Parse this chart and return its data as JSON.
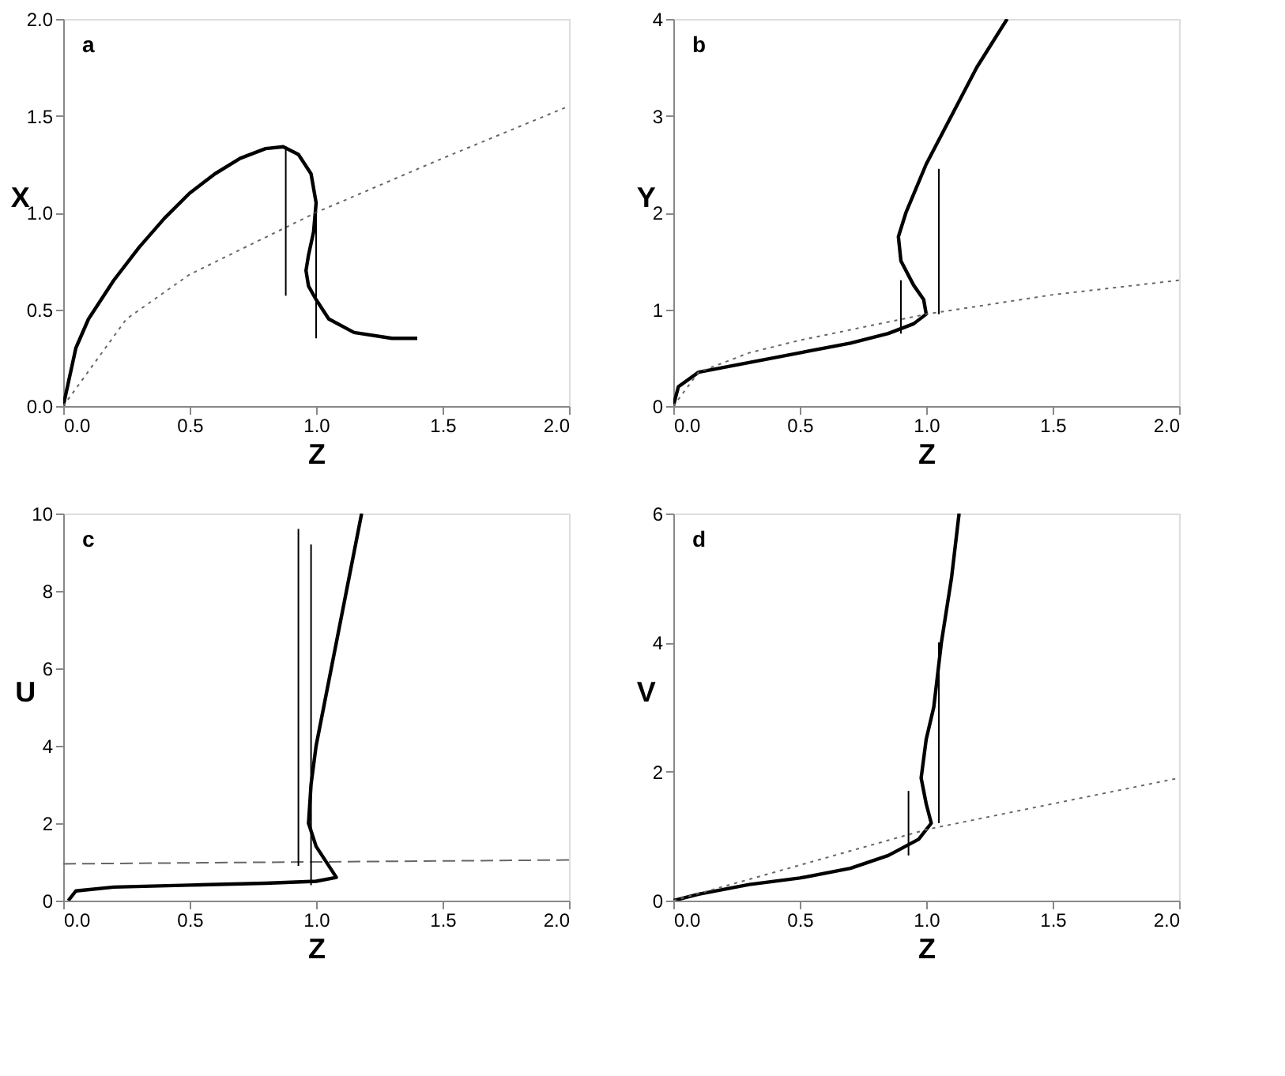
{
  "chart_data": [
    {
      "type": "line",
      "annotations": [
        "a"
      ],
      "xlabel": "Z",
      "ylabel": "X",
      "grid": false,
      "xlim": [
        0,
        2
      ],
      "xticks": [
        {
          "value": 0,
          "label": "0.0"
        },
        {
          "value": 0.5,
          "label": "0.5"
        },
        {
          "value": 1,
          "label": "1.0"
        },
        {
          "value": 1.5,
          "label": "1.5"
        },
        {
          "value": 2,
          "label": "2.0"
        }
      ],
      "ylim": [
        0,
        2
      ],
      "yticks": [
        {
          "value": 0,
          "label": "0.0"
        },
        {
          "value": 0.5,
          "label": "0.5"
        },
        {
          "value": 1,
          "label": "1.0"
        },
        {
          "value": 1.5,
          "label": "1.5"
        },
        {
          "value": 2,
          "label": "2.0"
        }
      ],
      "series": [
        {
          "color": "#000000",
          "line_style": "solid",
          "x": [
            0,
            0.05,
            0.1,
            0.2,
            0.3,
            0.4,
            0.5,
            0.6,
            0.7,
            0.8,
            0.87,
            0.93,
            0.98,
            1.0,
            0.99,
            0.97,
            0.96,
            0.97,
            1.0,
            1.05,
            1.15,
            1.3,
            1.4
          ],
          "values": [
            0,
            0.3,
            0.45,
            0.65,
            0.82,
            0.97,
            1.1,
            1.2,
            1.28,
            1.33,
            1.34,
            1.3,
            1.2,
            1.05,
            0.9,
            0.78,
            0.7,
            0.62,
            0.55,
            0.45,
            0.38,
            0.35,
            0.35
          ]
        },
        {
          "color": "#666666",
          "line_style": "dotted",
          "x": [
            0,
            0.25,
            0.5,
            1.0,
            1.5,
            2.0
          ],
          "values": [
            0,
            0.45,
            0.68,
            1.0,
            1.28,
            1.55
          ]
        },
        {
          "color": "#000000",
          "line_style": "solid",
          "x": [
            0.88,
            0.88
          ],
          "values": [
            0.57,
            1.33
          ]
        },
        {
          "color": "#000000",
          "line_style": "solid",
          "x": [
            1.0,
            1.0
          ],
          "values": [
            1.0,
            0.35
          ]
        }
      ]
    },
    {
      "type": "line",
      "annotations": [
        "b"
      ],
      "xlabel": "Z",
      "ylabel": "Y",
      "grid": false,
      "xlim": [
        0,
        2
      ],
      "xticks": [
        {
          "value": 0,
          "label": "0.0"
        },
        {
          "value": 0.5,
          "label": "0.5"
        },
        {
          "value": 1,
          "label": "1.0"
        },
        {
          "value": 1.5,
          "label": "1.5"
        },
        {
          "value": 2,
          "label": "2.0"
        }
      ],
      "ylim": [
        0,
        4
      ],
      "yticks": [
        0,
        1,
        2,
        3,
        4
      ],
      "series": [
        {
          "color": "#000000",
          "line_style": "solid",
          "x": [
            0,
            0.02,
            0.1,
            0.3,
            0.5,
            0.7,
            0.85,
            0.95,
            1.0,
            0.99,
            0.95,
            0.9,
            0.89,
            0.92,
            1.0,
            1.1,
            1.2,
            1.32
          ],
          "values": [
            0,
            0.2,
            0.35,
            0.45,
            0.55,
            0.65,
            0.75,
            0.85,
            0.95,
            1.1,
            1.25,
            1.5,
            1.75,
            2.0,
            2.5,
            3.0,
            3.5,
            4.0
          ]
        },
        {
          "color": "#666666",
          "line_style": "dotted",
          "x": [
            0,
            0.1,
            0.3,
            0.5,
            1.0,
            1.5,
            2.0
          ],
          "values": [
            0,
            0.35,
            0.55,
            0.68,
            0.95,
            1.15,
            1.3
          ]
        },
        {
          "color": "#000000",
          "line_style": "solid",
          "x": [
            0.9,
            0.9
          ],
          "values": [
            0.75,
            1.3
          ]
        },
        {
          "color": "#000000",
          "line_style": "solid",
          "x": [
            1.05,
            1.05
          ],
          "values": [
            0.95,
            2.45
          ]
        }
      ]
    },
    {
      "type": "line",
      "annotations": [
        "c"
      ],
      "xlabel": "Z",
      "ylabel": "U",
      "grid": false,
      "xlim": [
        0,
        2
      ],
      "xticks": [
        {
          "value": 0,
          "label": "0.0"
        },
        {
          "value": 0.5,
          "label": "0.5"
        },
        {
          "value": 1,
          "label": "1.0"
        },
        {
          "value": 1.5,
          "label": "1.5"
        },
        {
          "value": 2,
          "label": "2.0"
        }
      ],
      "ylim": [
        0,
        10
      ],
      "yticks": [
        0,
        2,
        4,
        6,
        8,
        10
      ],
      "series": [
        {
          "color": "#000000",
          "line_style": "solid",
          "x": [
            0.02,
            0.05,
            0.2,
            0.5,
            0.8,
            1.0,
            1.08,
            1.05,
            1.0,
            0.97,
            0.98,
            1.0,
            1.03,
            1.06,
            1.09,
            1.12,
            1.15,
            1.18
          ],
          "values": [
            0,
            0.25,
            0.35,
            0.4,
            0.45,
            0.5,
            0.6,
            0.9,
            1.4,
            2.0,
            3,
            4,
            5,
            6,
            7,
            8,
            9,
            10
          ]
        },
        {
          "color": "#666666",
          "line_style": "dashed",
          "x": [
            0,
            2.0
          ],
          "values": [
            0.95,
            1.05
          ]
        },
        {
          "color": "#000000",
          "line_style": "solid",
          "x": [
            0.93,
            0.93
          ],
          "values": [
            0.9,
            9.6
          ]
        },
        {
          "color": "#000000",
          "line_style": "solid",
          "x": [
            0.98,
            0.98
          ],
          "values": [
            9.2,
            0.4
          ]
        }
      ]
    },
    {
      "type": "line",
      "annotations": [
        "d"
      ],
      "xlabel": "Z",
      "ylabel": "V",
      "grid": false,
      "xlim": [
        0,
        2
      ],
      "xticks": [
        {
          "value": 0,
          "label": "0.0"
        },
        {
          "value": 0.5,
          "label": "0.5"
        },
        {
          "value": 1,
          "label": "1.0"
        },
        {
          "value": 1.5,
          "label": "1.5"
        },
        {
          "value": 2,
          "label": "2.0"
        }
      ],
      "ylim": [
        0,
        6
      ],
      "yticks": [
        0,
        2,
        4,
        6
      ],
      "series": [
        {
          "color": "#000000",
          "line_style": "solid",
          "x": [
            0,
            0.1,
            0.3,
            0.5,
            0.7,
            0.85,
            0.97,
            1.02,
            1.0,
            0.98,
            1.0,
            1.03,
            1.06,
            1.1,
            1.13
          ],
          "values": [
            0,
            0.1,
            0.25,
            0.35,
            0.5,
            0.7,
            0.95,
            1.2,
            1.5,
            1.9,
            2.5,
            3.0,
            4.0,
            5.0,
            6.0
          ]
        },
        {
          "color": "#666666",
          "line_style": "dotted",
          "x": [
            0,
            0.5,
            1.0,
            1.5,
            2.0
          ],
          "values": [
            0,
            0.55,
            1.1,
            1.5,
            1.9
          ]
        },
        {
          "color": "#000000",
          "line_style": "solid",
          "x": [
            0.93,
            0.93
          ],
          "values": [
            1.7,
            0.7
          ]
        },
        {
          "color": "#000000",
          "line_style": "solid",
          "x": [
            1.05,
            1.05
          ],
          "values": [
            1.2,
            4.0
          ]
        }
      ]
    }
  ]
}
